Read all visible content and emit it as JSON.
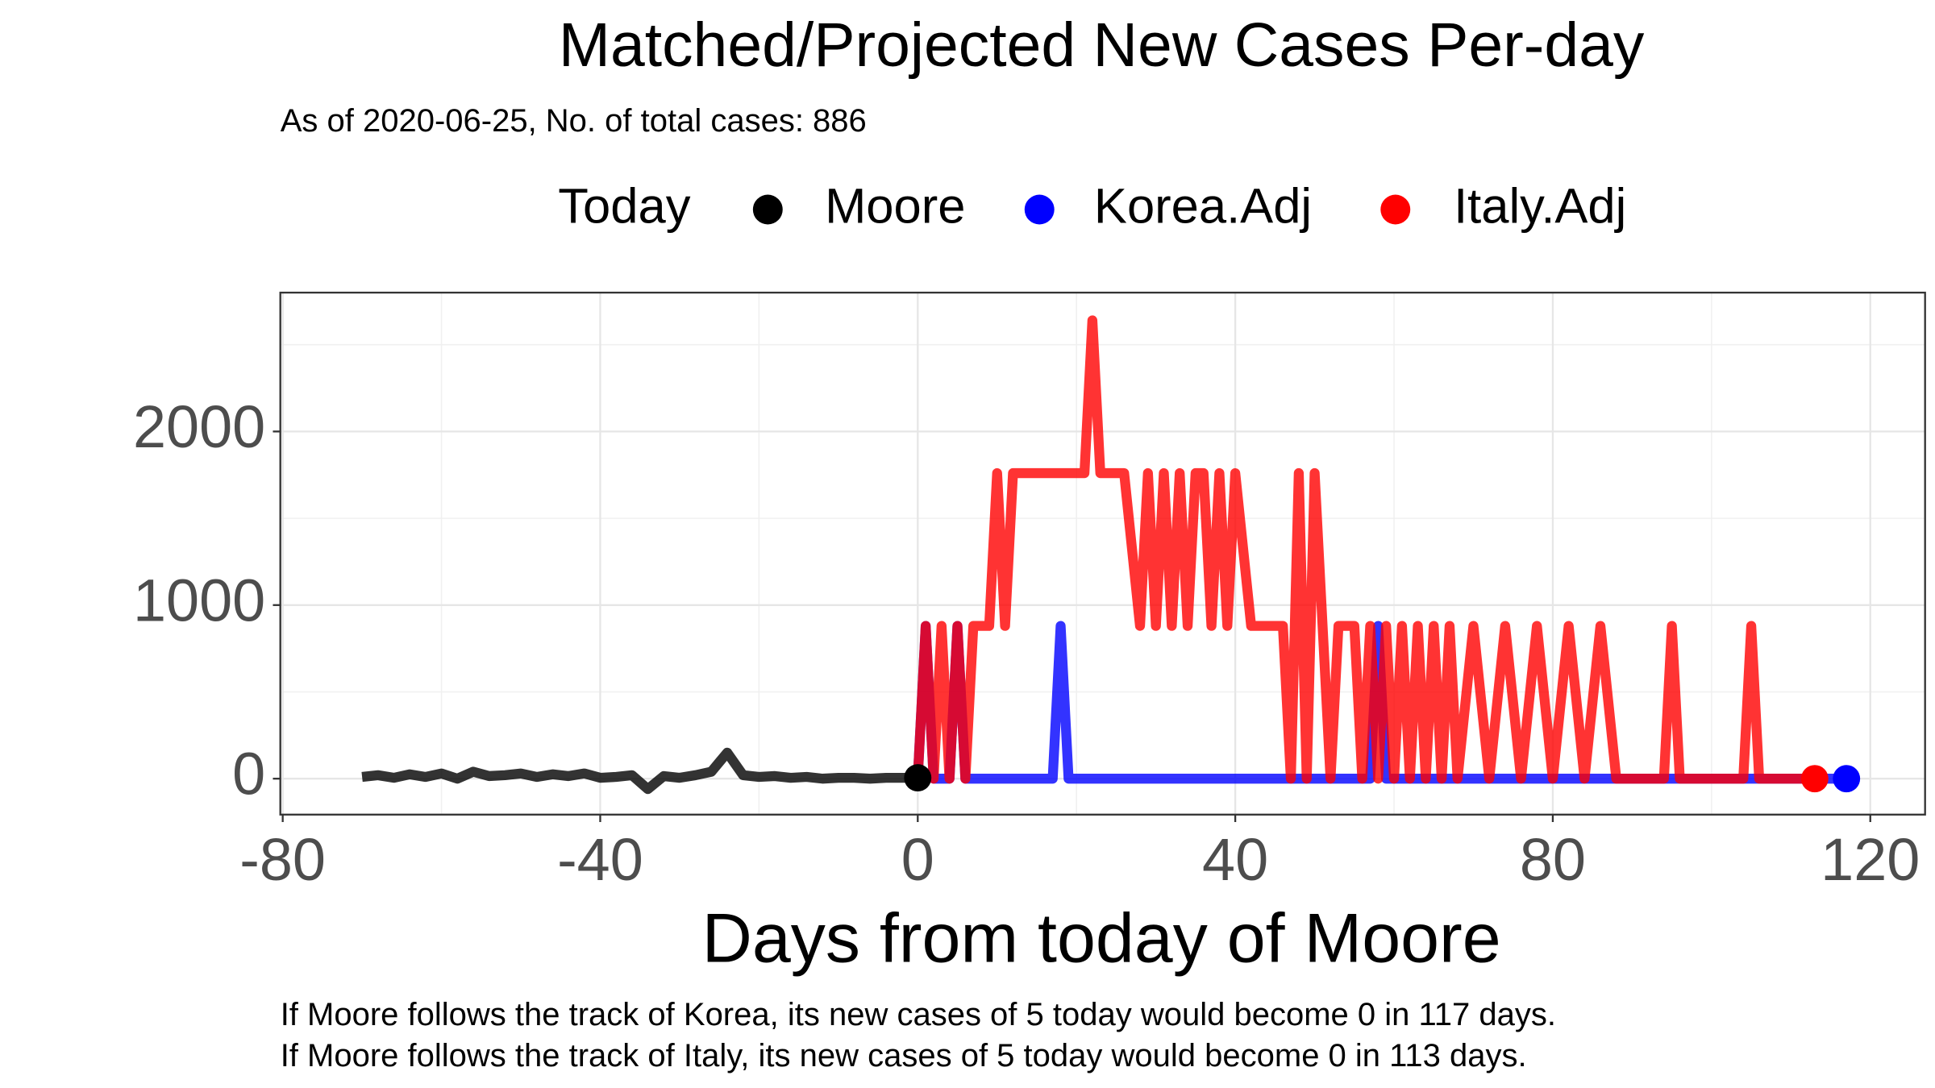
{
  "chart_data": {
    "type": "line",
    "title": "Matched/Projected New Cases Per-day",
    "subtitle": "As of 2020-06-25, No. of total cases: 886",
    "legend_title": "Today",
    "x_label": "Days from today of Moore",
    "captions": [
      "If Moore follows the track of Korea, its new cases of 5 today would become 0 in 117 days.",
      "If Moore follows the track of Italy, its new cases of 5 today would become 0 in 113 days."
    ],
    "xlim": [
      -80.3,
      126.9
    ],
    "ylim": [
      -207,
      2800
    ],
    "xticks": [
      -80,
      -40,
      0,
      40,
      80,
      120
    ],
    "yticks": [
      0,
      1000,
      2000
    ],
    "x_minor_grid": [
      -60,
      -20,
      20,
      60,
      100
    ],
    "y_minor_grid": [
      500,
      1500,
      2500
    ],
    "grid": true,
    "series": [
      {
        "name": "Moore",
        "color": "#000000",
        "x": [
          -70,
          -68,
          -66,
          -64,
          -62,
          -60,
          -58,
          -56,
          -54,
          -52,
          -50,
          -48,
          -46,
          -44,
          -42,
          -40,
          -38,
          -36,
          -34,
          -32,
          -30,
          -28,
          -26,
          -24,
          -22,
          -20,
          -18,
          -16,
          -14,
          -12,
          -10,
          -8,
          -6,
          -4,
          -2,
          0
        ],
        "values": [
          10,
          20,
          5,
          25,
          10,
          30,
          0,
          40,
          15,
          20,
          30,
          10,
          25,
          15,
          30,
          5,
          10,
          20,
          -60,
          15,
          5,
          20,
          40,
          150,
          20,
          10,
          15,
          5,
          10,
          0,
          5,
          5,
          0,
          5,
          5,
          5
        ]
      },
      {
        "name": "Korea.Adj",
        "color": "#0000ff",
        "x": [
          0,
          1,
          2,
          4,
          5,
          6,
          16,
          17,
          18,
          19,
          20,
          56,
          57,
          58,
          59,
          117
        ],
        "values": [
          0,
          880,
          0,
          0,
          880,
          0,
          0,
          0,
          880,
          0,
          0,
          0,
          0,
          880,
          0,
          0
        ]
      },
      {
        "name": "Italy.Adj",
        "color": "#ff0000",
        "x": [
          0,
          1,
          2,
          3,
          4,
          5,
          6,
          7,
          8,
          9,
          10,
          11,
          12,
          13,
          14,
          16,
          18,
          20,
          21,
          22,
          23,
          24,
          26,
          28,
          29,
          30,
          31,
          32,
          33,
          34,
          35,
          36,
          37,
          38,
          39,
          40,
          42,
          44,
          46,
          47,
          48,
          49,
          50,
          51,
          52,
          53,
          54,
          55,
          56,
          57,
          58,
          59,
          60,
          61,
          62,
          63,
          64,
          65,
          66,
          67,
          68,
          70,
          72,
          74,
          76,
          78,
          80,
          82,
          84,
          86,
          88,
          90,
          92,
          94,
          95,
          96,
          98,
          100,
          102,
          104,
          105,
          106,
          108,
          110,
          113
        ],
        "values": [
          0,
          880,
          0,
          880,
          0,
          880,
          0,
          880,
          880,
          880,
          1760,
          880,
          1760,
          1760,
          1760,
          1760,
          1760,
          1760,
          1760,
          2640,
          1760,
          1760,
          1760,
          880,
          1760,
          880,
          1760,
          880,
          1760,
          880,
          1760,
          1760,
          880,
          1760,
          880,
          1760,
          880,
          880,
          880,
          0,
          1760,
          0,
          1760,
          880,
          0,
          880,
          880,
          880,
          0,
          880,
          0,
          880,
          0,
          880,
          0,
          880,
          0,
          880,
          0,
          880,
          0,
          880,
          0,
          880,
          0,
          880,
          0,
          880,
          0,
          880,
          0,
          0,
          0,
          0,
          880,
          0,
          0,
          0,
          0,
          0,
          880,
          0,
          0,
          0,
          0
        ]
      }
    ]
  }
}
